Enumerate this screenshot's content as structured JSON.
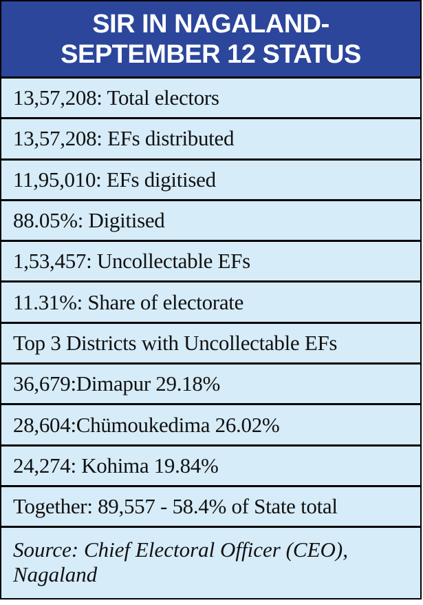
{
  "header": {
    "line1": "SIR IN NAGALAND-",
    "line2": "SEPTEMBER 12 STATUS"
  },
  "rows": [
    "13,57,208: Total electors",
    "13,57,208: EFs distributed",
    "11,95,010: EFs digitised",
    "88.05%: Digitised",
    "1,53,457: Uncollectable EFs",
    "11.31%: Share of electorate",
    "Top 3 Districts with Uncollectable EFs",
    "36,679:Dimapur 29.18%",
    "28,604:Chümoukedima 26.02%",
    "24,274: Kohima 19.84%",
    "Together: 89,557 - 58.4% of State total"
  ],
  "source": "Source: Chief Electoral Officer (CEO), Nagaland",
  "colors": {
    "header_bg": "#2b469b",
    "body_bg": "#d6ecf8",
    "border": "#000000"
  }
}
